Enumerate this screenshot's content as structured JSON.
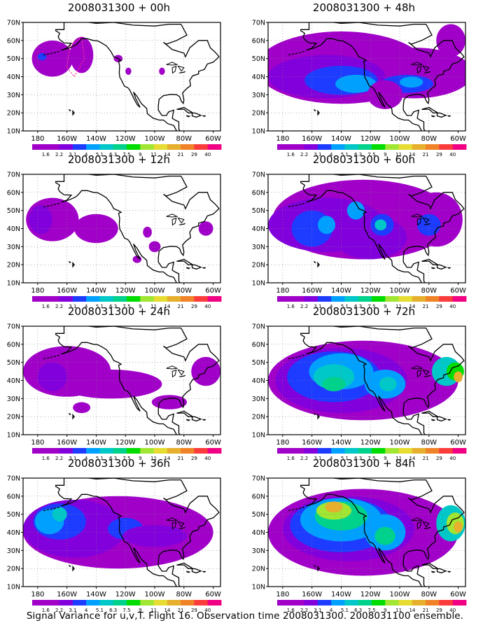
{
  "panels": [
    {
      "title": "2008031300 + 00h"
    },
    {
      "title": "2008031300 + 48h"
    },
    {
      "title": "2008031300 + 12h"
    },
    {
      "title": "2008031300 + 60h"
    },
    {
      "title": "2008031300 + 24h"
    },
    {
      "title": "2008031300 + 72h"
    },
    {
      "title": "2008031300 + 36h"
    },
    {
      "title": "2008031300 + 84h"
    }
  ],
  "lat_labels": [
    "70N",
    "60N",
    "50N",
    "40N",
    "30N",
    "20N",
    "10N"
  ],
  "lon_labels": [
    "180",
    "160W",
    "140W",
    "120W",
    "100W",
    "80W",
    "60W"
  ],
  "colorbar": {
    "labels": [
      "1.6",
      "2.2",
      "3.1",
      "4",
      "5.1",
      "6.3",
      "7.5",
      "9",
      "11",
      "14",
      "21",
      "29",
      "40"
    ],
    "colors": [
      "#a000c8",
      "#8200dc",
      "#1e3cff",
      "#00a0ff",
      "#00c8c8",
      "#00d28c",
      "#00dc00",
      "#a0e632",
      "#e6dc32",
      "#e6af2d",
      "#f08228",
      "#fa3c3c",
      "#f00082"
    ]
  },
  "footer": "Signal Variance for u,v,T. Flight 16. Observation time 2008031300. 2008031100 ensemble."
}
